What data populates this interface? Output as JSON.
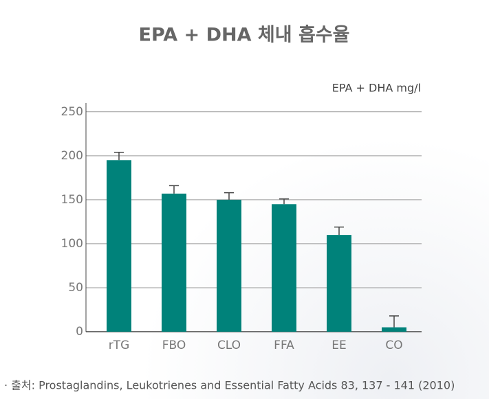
{
  "chart_data": {
    "type": "bar",
    "title": "EPA + DHA 체내 흡수율",
    "y_label": "EPA + DHA mg/l",
    "categories": [
      "rTG",
      "FBO",
      "CLO",
      "FFA",
      "EE",
      "CO"
    ],
    "values": [
      195,
      157,
      150,
      145,
      110,
      5
    ],
    "errors": [
      9,
      9,
      8,
      6,
      9,
      13
    ],
    "color": "#00827a",
    "ylim": [
      0,
      260
    ],
    "yticks": [
      0,
      50,
      100,
      150,
      200,
      250
    ],
    "grid": true,
    "source": "· 출처: Prostaglandins, Leukotrienes and Essential Fatty Acids 83, 137 - 141 (2010)"
  }
}
